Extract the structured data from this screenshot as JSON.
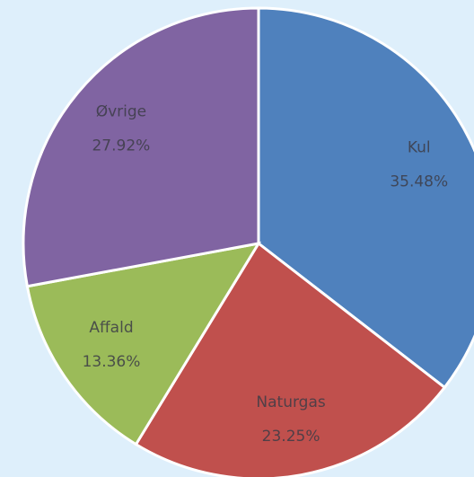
{
  "chart_data": {
    "type": "pie",
    "categories": [
      "Kul",
      "Naturgas",
      "Affald",
      "Øvrige"
    ],
    "values": [
      35.48,
      23.25,
      13.36,
      27.92
    ],
    "value_labels": [
      "35.48%",
      "23.25%",
      "13.36%",
      "27.92%"
    ],
    "colors": [
      "#4f81bd",
      "#c0504d",
      "#9bbb59",
      "#8064a2"
    ]
  }
}
